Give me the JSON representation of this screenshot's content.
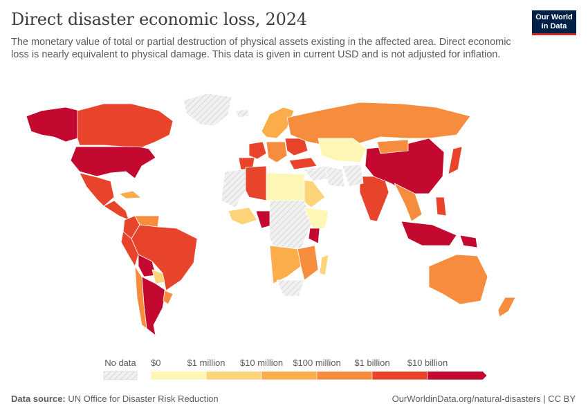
{
  "title": "Direct disaster economic loss, 2024",
  "subtitle": "The monetary value of total or partial destruction of physical assets existing in the affected area. Direct economic loss is nearly equivalent to physical damage. This data is given in current USD and is not adjusted for inflation.",
  "logo": {
    "line1": "Our World",
    "line2": "in Data"
  },
  "legend": {
    "no_data_label": "No data",
    "bins": [
      {
        "label": "$0",
        "color": "#fef6b4"
      },
      {
        "label": "$1 million",
        "color": "#fdd47a"
      },
      {
        "label": "$10 million",
        "color": "#fbad4c"
      },
      {
        "label": "$100 million",
        "color": "#f68c3e"
      },
      {
        "label": "$1 billion",
        "color": "#e8442b"
      },
      {
        "label": "$10 billion",
        "color": "#c3092f"
      }
    ]
  },
  "footer": {
    "source_label": "Data source:",
    "source_text": "UN Office for Disaster Risk Reduction",
    "url_text": "OurWorldinData.org/natural-disasters | CC BY"
  },
  "colors": {
    "no_data": "#e9e9e9",
    "border": "#ffffff",
    "brand": "#002147",
    "brand_accent": "#ce261e"
  },
  "regions": [
    {
      "id": "alaska",
      "bin": 5
    },
    {
      "id": "canada",
      "bin": 4
    },
    {
      "id": "greenland",
      "bin": -1
    },
    {
      "id": "usa",
      "bin": 5
    },
    {
      "id": "mexico",
      "bin": 4
    },
    {
      "id": "central-america",
      "bin": 4
    },
    {
      "id": "cuba",
      "bin": 2
    },
    {
      "id": "colombia",
      "bin": 4
    },
    {
      "id": "venezuela",
      "bin": 3
    },
    {
      "id": "peru",
      "bin": 4
    },
    {
      "id": "brazil",
      "bin": 4
    },
    {
      "id": "bolivia",
      "bin": 5
    },
    {
      "id": "paraguay",
      "bin": 1
    },
    {
      "id": "argentina",
      "bin": 5
    },
    {
      "id": "chile",
      "bin": 3
    },
    {
      "id": "uruguay",
      "bin": 3
    },
    {
      "id": "iceland",
      "bin": -1
    },
    {
      "id": "scandinavia",
      "bin": 2
    },
    {
      "id": "france",
      "bin": 4
    },
    {
      "id": "iberia",
      "bin": 4
    },
    {
      "id": "central-europe",
      "bin": 3
    },
    {
      "id": "eastern-europe",
      "bin": 4
    },
    {
      "id": "russia",
      "bin": 3
    },
    {
      "id": "kazakhstan",
      "bin": 0
    },
    {
      "id": "turkey",
      "bin": 4
    },
    {
      "id": "middle-east",
      "bin": -1
    },
    {
      "id": "saudi-arabia",
      "bin": 1
    },
    {
      "id": "iran",
      "bin": -1
    },
    {
      "id": "north-africa-west",
      "bin": -1
    },
    {
      "id": "algeria",
      "bin": 4
    },
    {
      "id": "libya-egypt",
      "bin": 0
    },
    {
      "id": "west-africa",
      "bin": 1
    },
    {
      "id": "nigeria",
      "bin": 5
    },
    {
      "id": "central-africa",
      "bin": -1
    },
    {
      "id": "ethiopia-somalia",
      "bin": 0
    },
    {
      "id": "kenya",
      "bin": 5
    },
    {
      "id": "east-africa-south",
      "bin": 3
    },
    {
      "id": "southern-africa",
      "bin": 2
    },
    {
      "id": "south-africa",
      "bin": -1
    },
    {
      "id": "madagascar",
      "bin": 1
    },
    {
      "id": "india",
      "bin": 4
    },
    {
      "id": "pakistan-afg",
      "bin": -1
    },
    {
      "id": "china",
      "bin": 5
    },
    {
      "id": "mongolia",
      "bin": 3
    },
    {
      "id": "southeast-asia",
      "bin": 3
    },
    {
      "id": "japan",
      "bin": 4
    },
    {
      "id": "philippines",
      "bin": 4
    },
    {
      "id": "indonesia",
      "bin": 5
    },
    {
      "id": "papua",
      "bin": 5
    },
    {
      "id": "australia",
      "bin": 3
    },
    {
      "id": "new-zealand",
      "bin": 3
    }
  ]
}
